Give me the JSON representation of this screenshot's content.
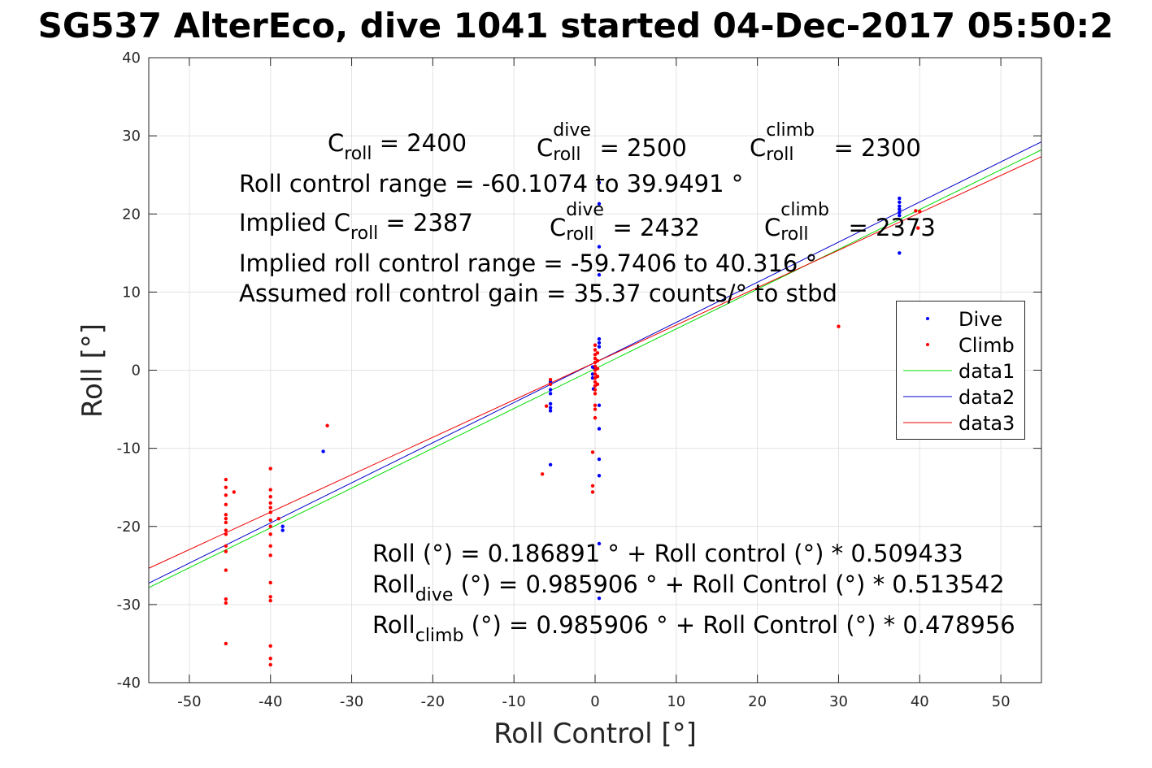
{
  "title": "SG537 AlterEco, dive 1041 started 04-Dec-2017 05:50:2",
  "colors": {
    "dive": "#0000ff",
    "climb": "#ff0000",
    "data1": "#00dd00",
    "data2": "#0000cc",
    "data3": "#ee0000",
    "grid": "#e3e3e3",
    "axis": "#262626"
  },
  "annotations": {
    "c_roll": {
      "base": "C",
      "sub": "roll",
      "value": " = 2400"
    },
    "c_roll_dive": {
      "base": "C",
      "sup": "dive",
      "sub": "roll",
      "value": " = 2500"
    },
    "c_roll_climb": {
      "base": "C",
      "sup": "climb",
      "sub": "roll",
      "value": " = 2300"
    },
    "range": "Roll control range = -60.1074 to 39.9491 °",
    "implied_prefix": "Implied C",
    "implied_sub": "roll",
    "implied_value": " = 2387",
    "implied_dive": {
      "base": "C",
      "sup": "dive",
      "sub": "roll",
      "value": " = 2432"
    },
    "implied_climb": {
      "base": "C",
      "sup": "climb",
      "sub": "roll",
      "value": " = 2373"
    },
    "implied_range": "Implied roll control range = -59.7406 to 40.316 °",
    "gain": "Assumed roll control gain = 35.37 counts/° to stbd",
    "fit_all": "Roll (°) = 0.186891 ° + Roll control (°) * 0.509433",
    "fit_dive_base": "Roll",
    "fit_dive_sub": "dive",
    "fit_dive_rest": " (°) = 0.985906 ° + Roll Control (°) * 0.513542",
    "fit_climb_base": "Roll",
    "fit_climb_sub": "climb",
    "fit_climb_rest": " (°) = 0.985906 ° + Roll Control (°) * 0.478956"
  },
  "chart_data": {
    "type": "scatter",
    "title": "SG537 AlterEco, dive 1041 started 04-Dec-2017 05:50:2",
    "xlabel": "Roll Control [°]",
    "ylabel": "Roll [°]",
    "xlim": [
      -55,
      55
    ],
    "ylim": [
      -40,
      40
    ],
    "xticks": [
      -50,
      -40,
      -30,
      -20,
      -10,
      0,
      10,
      20,
      30,
      40,
      50
    ],
    "yticks": [
      -40,
      -30,
      -20,
      -10,
      0,
      10,
      20,
      30,
      40
    ],
    "grid": true,
    "legend_position": "right",
    "legend": [
      "Dive",
      "Climb",
      "data1",
      "data2",
      "data3"
    ],
    "series": [
      {
        "name": "Dive",
        "kind": "points",
        "color": "#0000ff",
        "points": [
          [
            -33.5,
            -10.4
          ],
          [
            -38.5,
            -20.0
          ],
          [
            -38.5,
            -20.5
          ],
          [
            -5.5,
            -1.5
          ],
          [
            -5.5,
            -2.5
          ],
          [
            -5.5,
            -3.0
          ],
          [
            -5.5,
            -4.3
          ],
          [
            -5.5,
            -4.8
          ],
          [
            -5.5,
            -5.2
          ],
          [
            -5.5,
            -12.1
          ],
          [
            0.5,
            24.0
          ],
          [
            0.5,
            21.3
          ],
          [
            0.5,
            15.8
          ],
          [
            0.5,
            12.2
          ],
          [
            0.5,
            4.0
          ],
          [
            0.5,
            3.5
          ],
          [
            0.5,
            3.0
          ],
          [
            0.5,
            -4.5
          ],
          [
            0.5,
            -7.5
          ],
          [
            0.5,
            -11.4
          ],
          [
            0.5,
            -13.5
          ],
          [
            0.5,
            -22.2
          ],
          [
            0.5,
            -29.2
          ],
          [
            -0.3,
            0.4
          ],
          [
            -0.3,
            -0.5
          ],
          [
            -0.3,
            -1.0
          ],
          [
            -0.2,
            -2.4
          ],
          [
            0.0,
            0.2
          ],
          [
            37.5,
            22.0
          ],
          [
            37.5,
            21.5
          ],
          [
            37.5,
            21.0
          ],
          [
            37.5,
            20.6
          ],
          [
            37.5,
            20.2
          ],
          [
            37.5,
            19.8
          ],
          [
            37.5,
            15.0
          ]
        ]
      },
      {
        "name": "Climb",
        "kind": "points",
        "color": "#ff0000",
        "points": [
          [
            -45.5,
            -14.0
          ],
          [
            -45.5,
            -15.0
          ],
          [
            -45.5,
            -16.0
          ],
          [
            -45.5,
            -17.2
          ],
          [
            -45.5,
            -18.5
          ],
          [
            -45.5,
            -19.0
          ],
          [
            -45.5,
            -19.5
          ],
          [
            -45.5,
            -20.5
          ],
          [
            -45.5,
            -21.0
          ],
          [
            -45.5,
            -22.5
          ],
          [
            -45.5,
            -23.2
          ],
          [
            -45.5,
            -25.6
          ],
          [
            -45.5,
            -29.3
          ],
          [
            -45.5,
            -29.8
          ],
          [
            -45.5,
            -35.0
          ],
          [
            -44.5,
            -15.6
          ],
          [
            -40.0,
            -12.6
          ],
          [
            -40.0,
            -15.3
          ],
          [
            -40.0,
            -16.2
          ],
          [
            -40.0,
            -17.0
          ],
          [
            -40.0,
            -17.6
          ],
          [
            -40.0,
            -18.2
          ],
          [
            -40.0,
            -19.2
          ],
          [
            -40.0,
            -20.0
          ],
          [
            -40.0,
            -21.0
          ],
          [
            -40.0,
            -22.5
          ],
          [
            -40.0,
            -23.7
          ],
          [
            -40.0,
            -27.2
          ],
          [
            -40.0,
            -29.0
          ],
          [
            -40.0,
            -29.5
          ],
          [
            -40.0,
            -35.3
          ],
          [
            -40.0,
            -36.9
          ],
          [
            -40.0,
            -37.7
          ],
          [
            -39.0,
            -19.0
          ],
          [
            -33.0,
            -7.1
          ],
          [
            -6.5,
            -13.3
          ],
          [
            -5.5,
            -1.2
          ],
          [
            -5.5,
            -1.8
          ],
          [
            -6.0,
            -4.6
          ],
          [
            0.0,
            3.2
          ],
          [
            0.0,
            2.6
          ],
          [
            0.0,
            2.0
          ],
          [
            0.0,
            1.5
          ],
          [
            0.0,
            1.0
          ],
          [
            0.0,
            0.5
          ],
          [
            0.0,
            0.0
          ],
          [
            0.0,
            -0.5
          ],
          [
            0.0,
            -1.0
          ],
          [
            0.0,
            -1.5
          ],
          [
            0.0,
            -2.0
          ],
          [
            0.0,
            -2.5
          ],
          [
            0.0,
            -3.0
          ],
          [
            0.0,
            -4.5
          ],
          [
            0.0,
            -5.0
          ],
          [
            0.0,
            -6.1
          ],
          [
            -0.3,
            -10.5
          ],
          [
            -0.3,
            -14.8
          ],
          [
            -0.3,
            -15.6
          ],
          [
            0.3,
            2.2
          ],
          [
            0.3,
            1.2
          ],
          [
            0.3,
            0.2
          ],
          [
            0.3,
            -0.8
          ],
          [
            0.3,
            -1.8
          ],
          [
            30.0,
            5.6
          ],
          [
            39.5,
            20.4
          ],
          [
            40.0,
            20.3
          ],
          [
            39.8,
            18.2
          ]
        ]
      },
      {
        "name": "data1",
        "kind": "line",
        "color": "#00dd00",
        "intercept": 0.186891,
        "slope": 0.509433
      },
      {
        "name": "data2",
        "kind": "line",
        "color": "#0000cc",
        "intercept": 0.985906,
        "slope": 0.513542
      },
      {
        "name": "data3",
        "kind": "line",
        "color": "#ee0000",
        "intercept": 0.985906,
        "slope": 0.478956
      }
    ]
  }
}
